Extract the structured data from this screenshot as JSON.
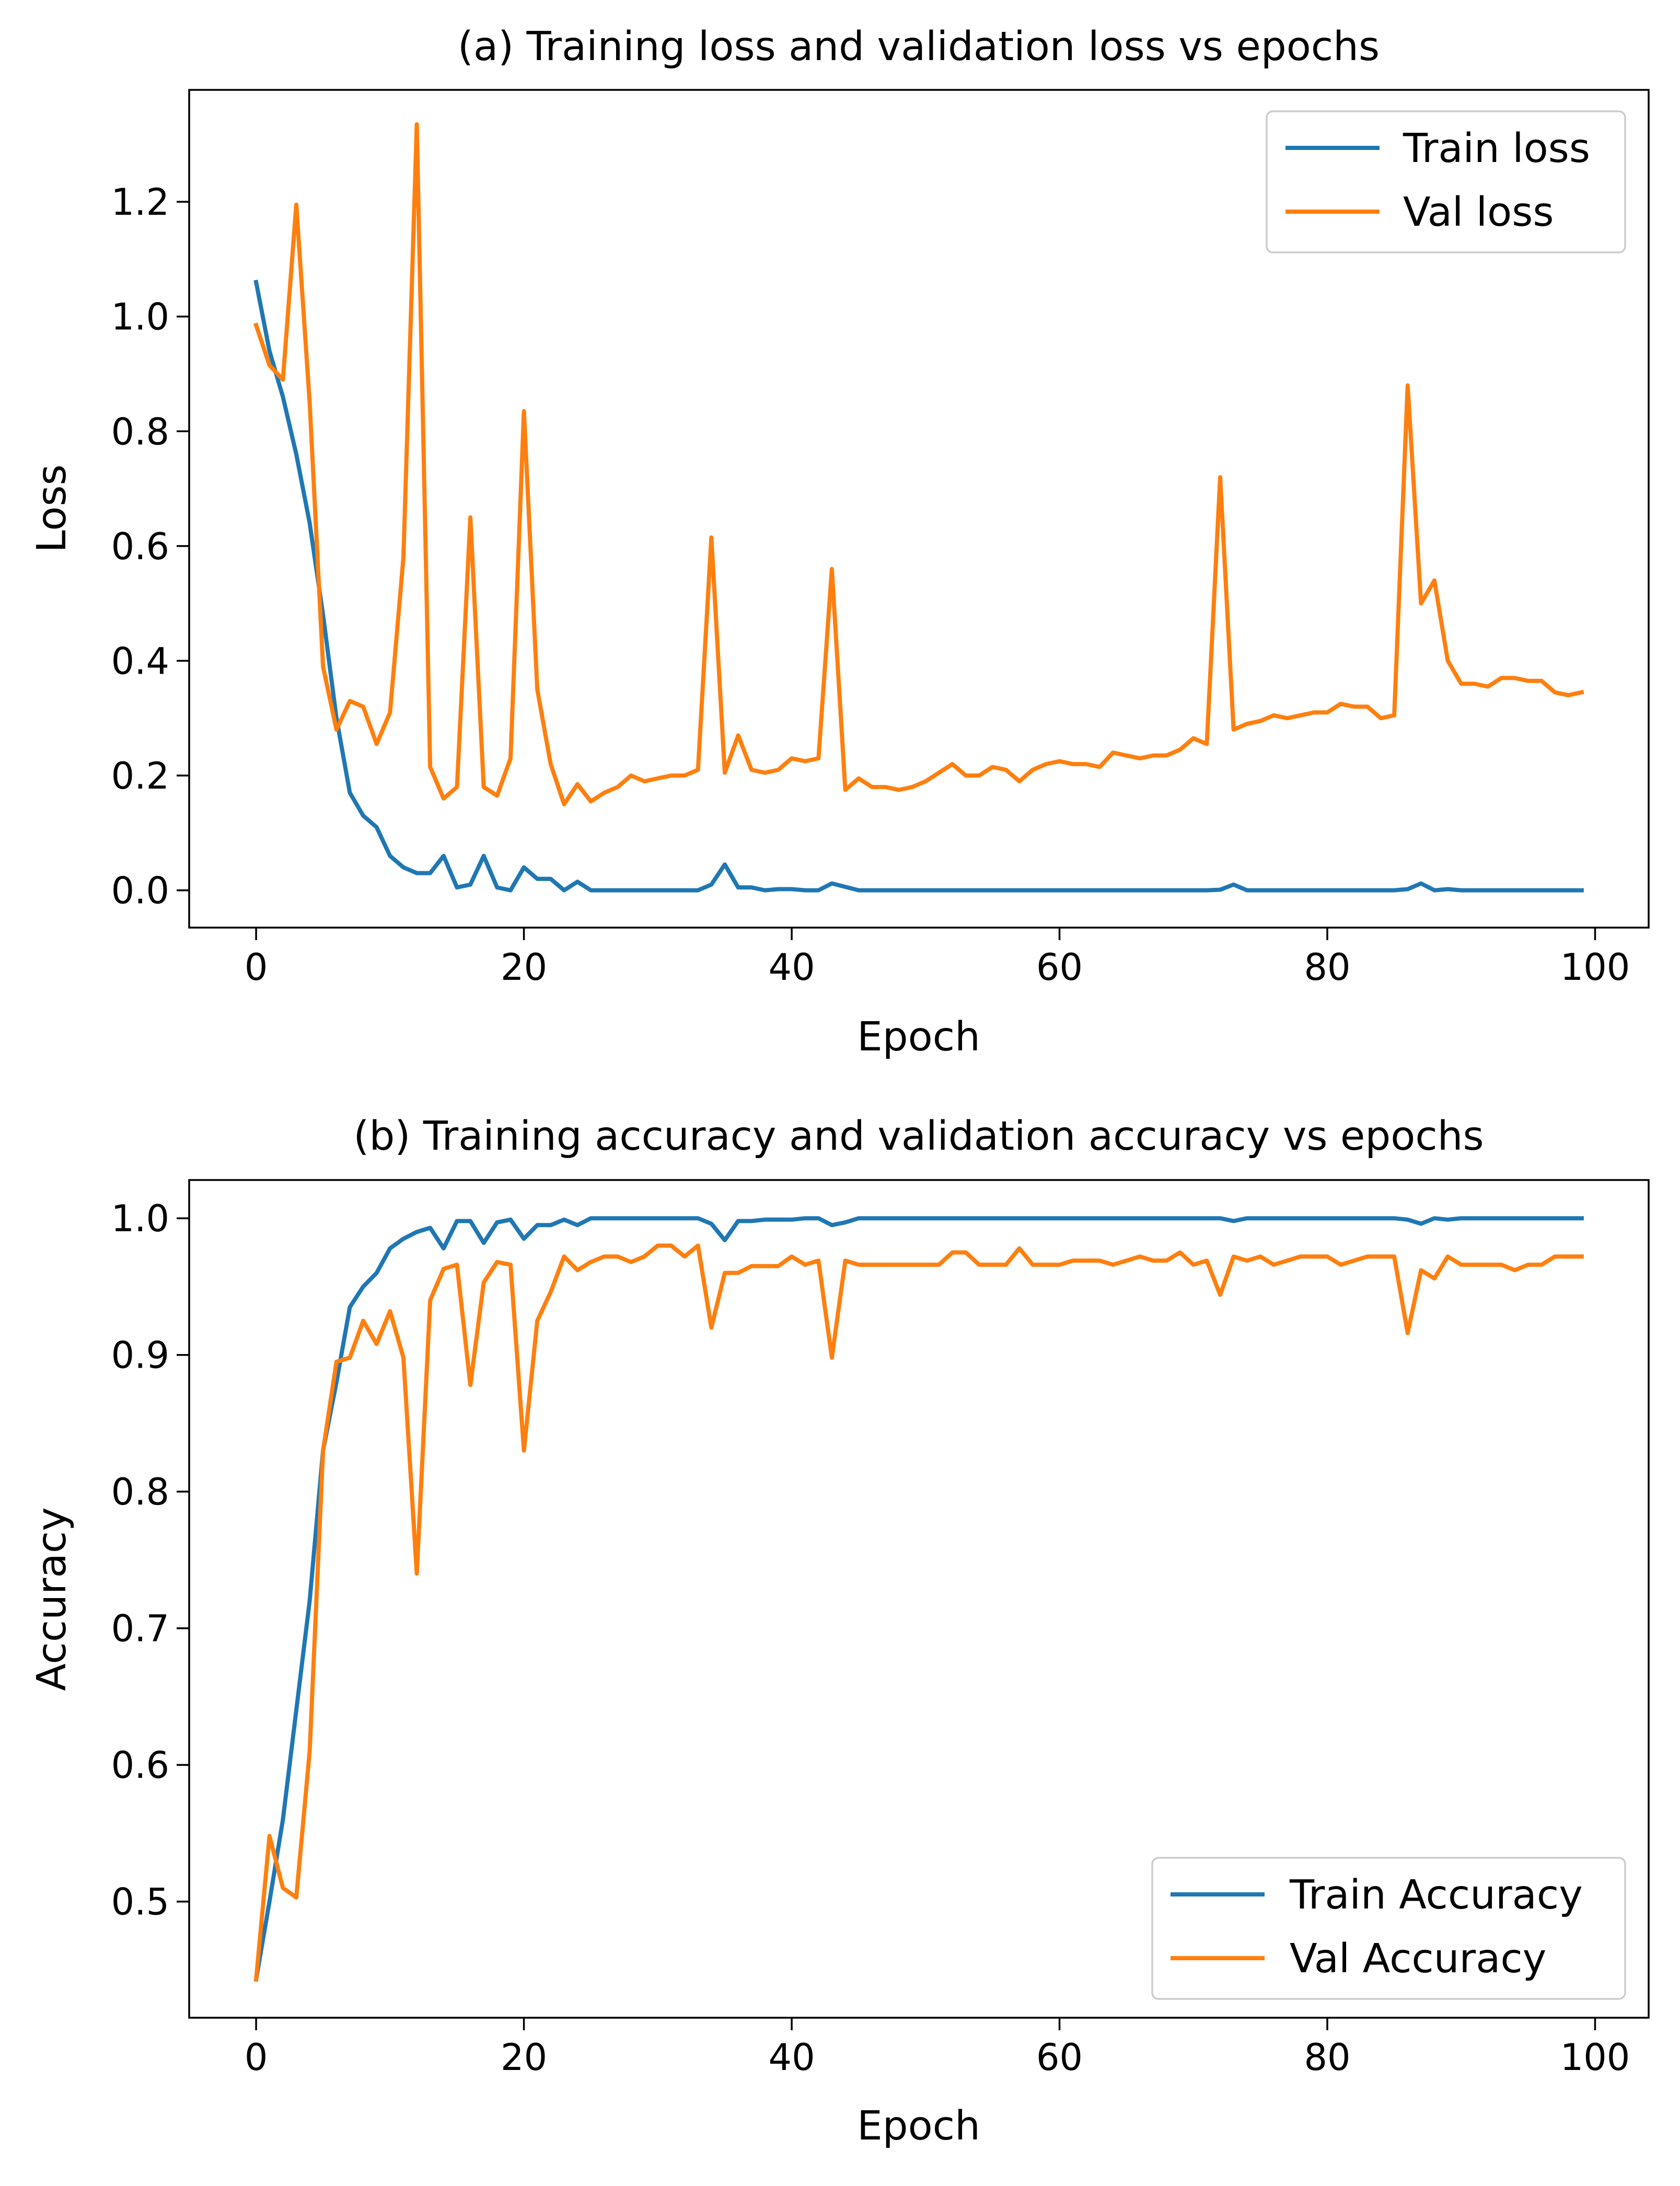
{
  "chart_data": [
    {
      "type": "line",
      "title": "(a) Training loss and validation loss vs epochs",
      "xlabel": "Epoch",
      "ylabel": "Loss",
      "xlim": [
        -5,
        104
      ],
      "ylim": [
        -0.065,
        1.395
      ],
      "xticks": [
        0,
        20,
        40,
        60,
        80,
        100
      ],
      "xtick_labels": [
        "0",
        "20",
        "40",
        "60",
        "80",
        "100"
      ],
      "yticks": [
        0.0,
        0.2,
        0.4,
        0.6,
        0.8,
        1.0,
        1.2
      ],
      "ytick_labels": [
        "0.0",
        "0.2",
        "0.4",
        "0.6",
        "0.8",
        "1.0",
        "1.2"
      ],
      "grid": false,
      "legend_position": "upper right",
      "series": [
        {
          "name": "Train loss",
          "color": "#1f77b4",
          "values": [
            1.06,
            0.94,
            0.86,
            0.76,
            0.64,
            0.48,
            0.3,
            0.17,
            0.13,
            0.11,
            0.06,
            0.04,
            0.03,
            0.03,
            0.06,
            0.005,
            0.01,
            0.06,
            0.005,
            0.0,
            0.04,
            0.02,
            0.02,
            0.0,
            0.015,
            0.0,
            0.0,
            0.0,
            0.0,
            0.0,
            0.0,
            0.0,
            0.0,
            0.0,
            0.01,
            0.045,
            0.005,
            0.005,
            0.0,
            0.002,
            0.002,
            0.0,
            0.0,
            0.012,
            0.006,
            0.0,
            0.0,
            0.0,
            0.0,
            0.0,
            0.0,
            0.0,
            0.0,
            0.0,
            0.0,
            0.0,
            0.0,
            0.0,
            0.0,
            0.0,
            0.0,
            0.0,
            0.0,
            0.0,
            0.0,
            0.0,
            0.0,
            0.0,
            0.0,
            0.0,
            0.0,
            0.0,
            0.001,
            0.01,
            0.0,
            0.0,
            0.0,
            0.0,
            0.0,
            0.0,
            0.0,
            0.0,
            0.0,
            0.0,
            0.0,
            0.0,
            0.002,
            0.012,
            0.0,
            0.002,
            0.0,
            0.0,
            0.0,
            0.0,
            0.0,
            0.0,
            0.0,
            0.0,
            0.0,
            0.0
          ]
        },
        {
          "name": "Val loss",
          "color": "#ff7f0e",
          "values": [
            0.985,
            0.915,
            0.89,
            1.195,
            0.85,
            0.39,
            0.28,
            0.33,
            0.32,
            0.255,
            0.31,
            0.58,
            1.335,
            0.215,
            0.16,
            0.18,
            0.65,
            0.18,
            0.165,
            0.23,
            0.835,
            0.35,
            0.22,
            0.15,
            0.185,
            0.155,
            0.17,
            0.18,
            0.2,
            0.19,
            0.195,
            0.2,
            0.2,
            0.21,
            0.615,
            0.205,
            0.27,
            0.21,
            0.205,
            0.21,
            0.23,
            0.225,
            0.23,
            0.56,
            0.175,
            0.195,
            0.18,
            0.18,
            0.175,
            0.18,
            0.19,
            0.205,
            0.22,
            0.2,
            0.2,
            0.215,
            0.21,
            0.19,
            0.21,
            0.22,
            0.225,
            0.22,
            0.22,
            0.215,
            0.24,
            0.235,
            0.23,
            0.235,
            0.235,
            0.245,
            0.265,
            0.255,
            0.72,
            0.28,
            0.29,
            0.295,
            0.305,
            0.3,
            0.305,
            0.31,
            0.31,
            0.325,
            0.32,
            0.32,
            0.3,
            0.305,
            0.88,
            0.5,
            0.54,
            0.4,
            0.36,
            0.36,
            0.355,
            0.37,
            0.37,
            0.365,
            0.365,
            0.345,
            0.34,
            0.345
          ]
        }
      ]
    },
    {
      "type": "line",
      "title": "(b) Training accuracy and validation accuracy vs epochs",
      "xlabel": "Epoch",
      "ylabel": "Accuracy",
      "xlim": [
        -5,
        104
      ],
      "ylim": [
        0.415,
        1.028
      ],
      "xticks": [
        0,
        20,
        40,
        60,
        80,
        100
      ],
      "xtick_labels": [
        "0",
        "20",
        "40",
        "60",
        "80",
        "100"
      ],
      "yticks": [
        0.5,
        0.6,
        0.7,
        0.8,
        0.9,
        1.0
      ],
      "ytick_labels": [
        "0.5",
        "0.6",
        "0.7",
        "0.8",
        "0.9",
        "1.0"
      ],
      "grid": false,
      "legend_position": "lower right",
      "series": [
        {
          "name": "Train Accuracy",
          "color": "#1f77b4",
          "values": [
            0.443,
            0.5,
            0.56,
            0.64,
            0.72,
            0.83,
            0.88,
            0.935,
            0.95,
            0.96,
            0.978,
            0.985,
            0.99,
            0.993,
            0.978,
            0.998,
            0.998,
            0.982,
            0.997,
            0.999,
            0.985,
            0.995,
            0.995,
            0.999,
            0.995,
            1.0,
            1.0,
            1.0,
            1.0,
            1.0,
            1.0,
            1.0,
            1.0,
            1.0,
            0.996,
            0.984,
            0.998,
            0.998,
            0.999,
            0.999,
            0.999,
            1.0,
            1.0,
            0.995,
            0.997,
            1.0,
            1.0,
            1.0,
            1.0,
            1.0,
            1.0,
            1.0,
            1.0,
            1.0,
            1.0,
            1.0,
            1.0,
            1.0,
            1.0,
            1.0,
            1.0,
            1.0,
            1.0,
            1.0,
            1.0,
            1.0,
            1.0,
            1.0,
            1.0,
            1.0,
            1.0,
            1.0,
            1.0,
            0.998,
            1.0,
            1.0,
            1.0,
            1.0,
            1.0,
            1.0,
            1.0,
            1.0,
            1.0,
            1.0,
            1.0,
            1.0,
            0.999,
            0.996,
            1.0,
            0.999,
            1.0,
            1.0,
            1.0,
            1.0,
            1.0,
            1.0,
            1.0,
            1.0,
            1.0,
            1.0
          ]
        },
        {
          "name": "Val Accuracy",
          "color": "#ff7f0e",
          "values": [
            0.443,
            0.548,
            0.51,
            0.503,
            0.61,
            0.83,
            0.895,
            0.898,
            0.925,
            0.908,
            0.932,
            0.898,
            0.74,
            0.94,
            0.963,
            0.966,
            0.878,
            0.953,
            0.968,
            0.966,
            0.83,
            0.925,
            0.946,
            0.972,
            0.962,
            0.968,
            0.972,
            0.972,
            0.968,
            0.972,
            0.98,
            0.98,
            0.972,
            0.98,
            0.92,
            0.96,
            0.96,
            0.965,
            0.965,
            0.965,
            0.972,
            0.966,
            0.969,
            0.898,
            0.969,
            0.966,
            0.966,
            0.966,
            0.966,
            0.966,
            0.966,
            0.966,
            0.975,
            0.975,
            0.966,
            0.966,
            0.966,
            0.978,
            0.966,
            0.966,
            0.966,
            0.969,
            0.969,
            0.969,
            0.966,
            0.969,
            0.972,
            0.969,
            0.969,
            0.975,
            0.966,
            0.969,
            0.944,
            0.972,
            0.969,
            0.972,
            0.966,
            0.969,
            0.972,
            0.972,
            0.972,
            0.966,
            0.969,
            0.972,
            0.972,
            0.972,
            0.916,
            0.962,
            0.956,
            0.972,
            0.966,
            0.966,
            0.966,
            0.966,
            0.962,
            0.966,
            0.966,
            0.972,
            0.972,
            0.972
          ]
        }
      ]
    }
  ]
}
